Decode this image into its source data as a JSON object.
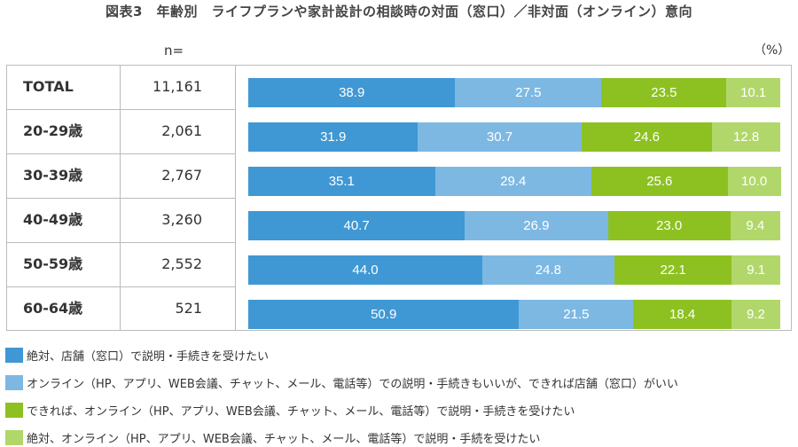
{
  "chart_data": {
    "type": "bar",
    "orientation": "horizontal",
    "stacked": true,
    "title": "図表3　年齢別　ライフプランや家計設計の相談時の対面（窓口）／非対面（オンライン）意向",
    "n_label": "n=",
    "unit": "（%）",
    "categories": [
      "TOTAL",
      "20-29歳",
      "30-39歳",
      "40-49歳",
      "50-59歳",
      "60-64歳"
    ],
    "n_values": [
      "11,161",
      "2,061",
      "2,767",
      "3,260",
      "2,552",
      "521"
    ],
    "xlim": [
      0,
      100
    ],
    "series": [
      {
        "name": "絶対、店舗（窓口）で説明・手続きを受けたい",
        "color": "#3f98d4",
        "values": [
          38.9,
          31.9,
          35.1,
          40.7,
          44.0,
          50.9
        ]
      },
      {
        "name": "オンライン（HP、アプリ、WEB会議、チャット、メール、電話等）での説明・手続きもいいが、できれば店舗（窓口）がいい",
        "color": "#7db8e3",
        "values": [
          27.5,
          30.7,
          29.4,
          26.9,
          24.8,
          21.5
        ]
      },
      {
        "name": "できれば、オンライン（HP、アプリ、WEB会議、チャット、メール、電話等）で説明・手続きを受けたい",
        "color": "#8dc121",
        "values": [
          23.5,
          24.6,
          25.6,
          23.0,
          22.1,
          18.4
        ]
      },
      {
        "name": "絶対、オンライン（HP、アプリ、WEB会議、チャット、メール、電話等）で説明・手続を受けたい",
        "color": "#b1d76a",
        "values": [
          10.1,
          12.8,
          10.0,
          9.4,
          9.1,
          9.2
        ]
      }
    ]
  }
}
